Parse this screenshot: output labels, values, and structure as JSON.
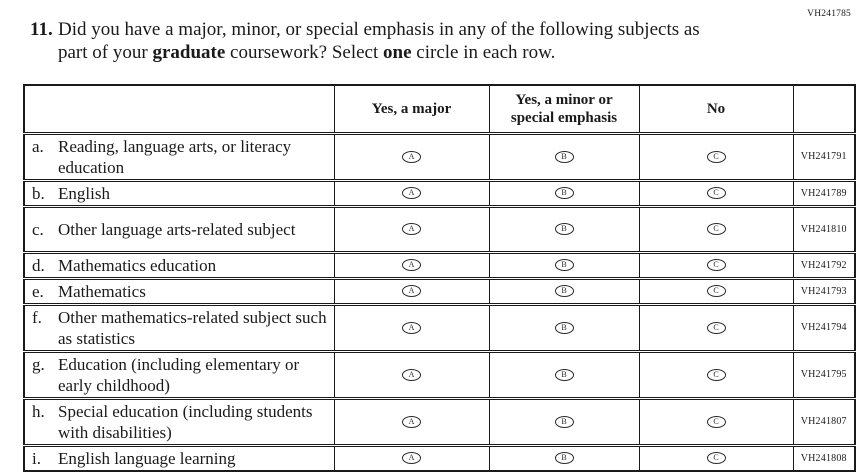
{
  "page": {
    "form_code": "VH241785"
  },
  "question": {
    "number": "11.",
    "line1": "Did you have a major, minor, or special emphasis in any of the following subjects as",
    "line2_pre": "part of your ",
    "line2_bold1": "graduate",
    "line2_mid": " coursework? Select ",
    "line2_bold2": "one",
    "line2_end": " circle in each row."
  },
  "table": {
    "headers": {
      "col_label": "",
      "col1": "Yes, a major",
      "col2": "Yes, a minor or special emphasis",
      "col3": "No",
      "col_code": ""
    },
    "bubble_letters": [
      "A",
      "B",
      "C"
    ],
    "rows": [
      {
        "letter": "a.",
        "label": "Reading, language arts, or literacy education",
        "code": "VH241791"
      },
      {
        "letter": "b.",
        "label": "English",
        "code": "VH241789"
      },
      {
        "letter": "c.",
        "label": "Other language arts-related subject",
        "code": "VH241810"
      },
      {
        "letter": "d.",
        "label": "Mathematics education",
        "code": "VH241792"
      },
      {
        "letter": "e.",
        "label": "Mathematics",
        "code": "VH241793"
      },
      {
        "letter": "f.",
        "label": "Other mathematics-related subject such as statistics",
        "code": "VH241794"
      },
      {
        "letter": "g.",
        "label": "Education (including elementary or early childhood)",
        "code": "VH241795"
      },
      {
        "letter": "h.",
        "label": "Special education (including students with disabilities)",
        "code": "VH241807"
      },
      {
        "letter": "i.",
        "label": "English language learning",
        "code": "VH241808"
      }
    ]
  }
}
